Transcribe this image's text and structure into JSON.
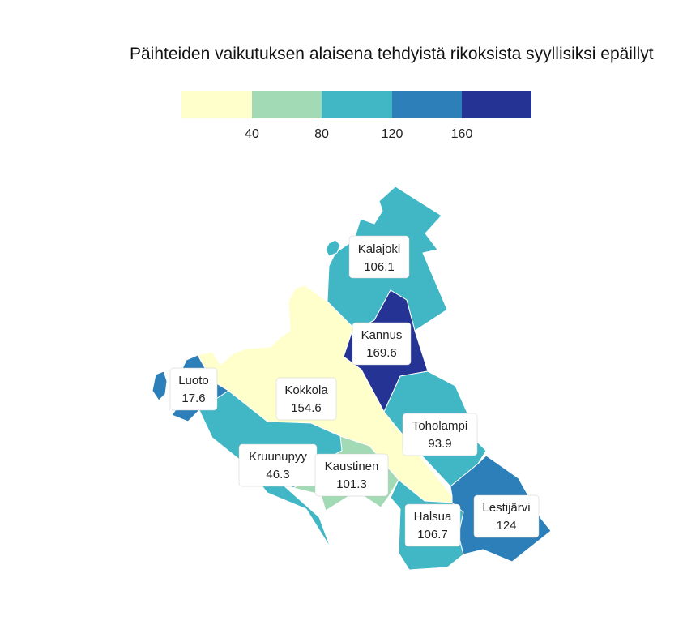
{
  "title": "Päihteiden vaikutuksen alaisena tehdyistä rikoksista syyllisiksi epäillyt",
  "legend": {
    "ticks": [
      "40",
      "80",
      "120",
      "160"
    ],
    "colors": [
      "#ffffcc",
      "#a1dab4",
      "#41b6c4",
      "#2c7fb8",
      "#253494"
    ]
  },
  "map_data": {
    "type": "choropleth",
    "regions": [
      {
        "name": "Kalajoki",
        "value": "106.1",
        "color": "#41b6c4"
      },
      {
        "name": "Kannus",
        "value": "169.6",
        "color": "#253494"
      },
      {
        "name": "Luoto",
        "value": "17.6",
        "color": "#ffffcc"
      },
      {
        "name": "Kokkola",
        "value": "154.6",
        "color": "#2c7fb8"
      },
      {
        "name": "Toholampi",
        "value": "93.9",
        "color": "#41b6c4"
      },
      {
        "name": "Kruunupyy",
        "value": "46.3",
        "color": "#a1dab4"
      },
      {
        "name": "Kaustinen",
        "value": "101.3",
        "color": "#41b6c4"
      },
      {
        "name": "Halsua",
        "value": "106.7",
        "color": "#41b6c4"
      },
      {
        "name": "Lestijärvi",
        "value": "124",
        "color": "#2c7fb8"
      }
    ]
  }
}
